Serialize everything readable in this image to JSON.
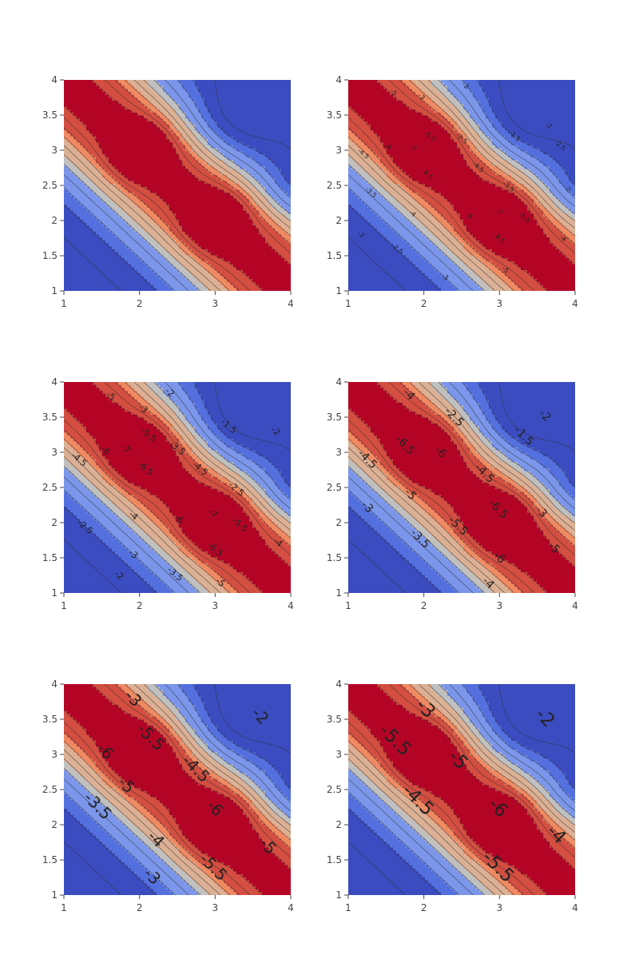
{
  "chart_data": [
    {
      "type": "contour",
      "x_range": [
        1,
        4
      ],
      "y_range": [
        1,
        4
      ],
      "x_ticks": [
        "1",
        "2",
        "3",
        "4"
      ],
      "y_ticks": [
        "1",
        "1.5",
        "2",
        "2.5",
        "3",
        "3.5",
        "4"
      ],
      "colorscale": [
        "#b40426",
        "#d44e41",
        "#f08a62",
        "#dcb094",
        "#c0c0c0",
        "#7b96ea",
        "#5470de",
        "#3b4cc0",
        "#1515a8"
      ],
      "labels": []
    },
    {
      "type": "contour",
      "x_range": [
        1,
        4
      ],
      "y_range": [
        1,
        4
      ],
      "x_ticks": [
        "1",
        "2",
        "3",
        "4"
      ],
      "y_ticks": [
        "1",
        "1.5",
        "2",
        "2.5",
        "3",
        "3.5",
        "4"
      ],
      "colorscale": [
        "#b40426",
        "#d44e41",
        "#f08a62",
        "#dcb094",
        "#c0c0c0",
        "#7b96ea",
        "#5470de",
        "#3b4cc0",
        "#1515a8"
      ],
      "labels": [
        {
          "text": "-5",
          "x": 1.6,
          "y": 3.82
        },
        {
          "text": "-3",
          "x": 1.97,
          "y": 3.76
        },
        {
          "text": "-2",
          "x": 2.55,
          "y": 3.92
        },
        {
          "text": "-5.5",
          "x": 2.08,
          "y": 3.2
        },
        {
          "text": "-6",
          "x": 1.53,
          "y": 3.05
        },
        {
          "text": "-7",
          "x": 1.86,
          "y": 3.04
        },
        {
          "text": "-6.5",
          "x": 2.05,
          "y": 2.66
        },
        {
          "text": "-2.5",
          "x": 2.5,
          "y": 3.17
        },
        {
          "text": "-1.5",
          "x": 3.2,
          "y": 3.2
        },
        {
          "text": "-4.5",
          "x": 2.72,
          "y": 2.76
        },
        {
          "text": "-2",
          "x": 3.65,
          "y": 3.35
        },
        {
          "text": "-2.5",
          "x": 3.8,
          "y": 3.07
        },
        {
          "text": "-3.5",
          "x": 3.12,
          "y": 2.48
        },
        {
          "text": "-4.5",
          "x": 1.2,
          "y": 2.95
        },
        {
          "text": "-3.5",
          "x": 1.3,
          "y": 2.4
        },
        {
          "text": "-4",
          "x": 1.85,
          "y": 2.1
        },
        {
          "text": "-7",
          "x": 3.0,
          "y": 2.13
        },
        {
          "text": "-6",
          "x": 2.6,
          "y": 2.07
        },
        {
          "text": "-5.5",
          "x": 3.33,
          "y": 2.04
        },
        {
          "text": "-2",
          "x": 1.17,
          "y": 1.8
        },
        {
          "text": "-2.5",
          "x": 1.65,
          "y": 1.6
        },
        {
          "text": "-6.5",
          "x": 3.0,
          "y": 1.75
        },
        {
          "text": "-4",
          "x": 3.84,
          "y": 1.75
        },
        {
          "text": "-3",
          "x": 2.28,
          "y": 1.2
        },
        {
          "text": "-5",
          "x": 3.08,
          "y": 1.3
        },
        {
          "text": "-2",
          "x": 3.9,
          "y": 2.45
        }
      ]
    },
    {
      "type": "contour",
      "x_range": [
        1,
        4
      ],
      "y_range": [
        1,
        4
      ],
      "x_ticks": [
        "1",
        "2",
        "3",
        "4"
      ],
      "y_ticks": [
        "1",
        "1.5",
        "2",
        "2.5",
        "3",
        "3.5",
        "4"
      ],
      "colorscale": [
        "#b40426",
        "#d44e41",
        "#f08a62",
        "#dcb094",
        "#c0c0c0",
        "#7b96ea",
        "#5470de",
        "#3b4cc0",
        "#1515a8"
      ],
      "labels": [
        {
          "text": "-5",
          "x": 1.62,
          "y": 3.8
        },
        {
          "text": "-3",
          "x": 2.05,
          "y": 3.62
        },
        {
          "text": "-2",
          "x": 2.4,
          "y": 3.85
        },
        {
          "text": "-5.5",
          "x": 2.12,
          "y": 3.25
        },
        {
          "text": "-6",
          "x": 1.55,
          "y": 3.03
        },
        {
          "text": "-7",
          "x": 1.82,
          "y": 3.05
        },
        {
          "text": "-6.5",
          "x": 2.08,
          "y": 2.77
        },
        {
          "text": "-3.5",
          "x": 2.5,
          "y": 3.06
        },
        {
          "text": "-1.5",
          "x": 3.18,
          "y": 3.37
        },
        {
          "text": "-2",
          "x": 3.8,
          "y": 3.3
        },
        {
          "text": "-4.5",
          "x": 2.8,
          "y": 2.77
        },
        {
          "text": "-2.5",
          "x": 3.28,
          "y": 2.48
        },
        {
          "text": "-4.5",
          "x": 1.2,
          "y": 2.9
        },
        {
          "text": "-4",
          "x": 1.92,
          "y": 2.1
        },
        {
          "text": "-6",
          "x": 2.52,
          "y": 2.05
        },
        {
          "text": "-7",
          "x": 2.97,
          "y": 2.13
        },
        {
          "text": "-5.5",
          "x": 3.33,
          "y": 1.97
        },
        {
          "text": "-2.5",
          "x": 1.28,
          "y": 1.94
        },
        {
          "text": "-6.5",
          "x": 3.0,
          "y": 1.62
        },
        {
          "text": "-3",
          "x": 1.92,
          "y": 1.55
        },
        {
          "text": "-4",
          "x": 3.83,
          "y": 1.72
        },
        {
          "text": "-2",
          "x": 1.73,
          "y": 1.25
        },
        {
          "text": "-3.5",
          "x": 2.47,
          "y": 1.27
        },
        {
          "text": "-5",
          "x": 3.07,
          "y": 1.15
        }
      ]
    },
    {
      "type": "contour",
      "x_range": [
        1,
        4
      ],
      "y_range": [
        1,
        4
      ],
      "x_ticks": [
        "1",
        "2",
        "3",
        "4"
      ],
      "y_ticks": [
        "1",
        "1.5",
        "2",
        "2.5",
        "3",
        "3.5",
        "4"
      ],
      "colorscale": [
        "#b40426",
        "#d44e41",
        "#f08a62",
        "#dcb094",
        "#c0c0c0",
        "#7b96ea",
        "#5470de",
        "#3b4cc0",
        "#1515a8"
      ],
      "labels": [
        {
          "text": "-4",
          "x": 1.8,
          "y": 3.82
        },
        {
          "text": "-2.5",
          "x": 2.4,
          "y": 3.5
        },
        {
          "text": "-2",
          "x": 3.6,
          "y": 3.52
        },
        {
          "text": "-6.5",
          "x": 1.75,
          "y": 3.1
        },
        {
          "text": "-6",
          "x": 2.22,
          "y": 3.0
        },
        {
          "text": "-1.5",
          "x": 3.32,
          "y": 3.23
        },
        {
          "text": "-4.5",
          "x": 1.25,
          "y": 2.9
        },
        {
          "text": "-4.5",
          "x": 2.8,
          "y": 2.7
        },
        {
          "text": "-5",
          "x": 1.82,
          "y": 2.4
        },
        {
          "text": "-3",
          "x": 1.25,
          "y": 2.22
        },
        {
          "text": "-3",
          "x": 3.55,
          "y": 2.15
        },
        {
          "text": "-6.5",
          "x": 2.98,
          "y": 2.19
        },
        {
          "text": "-5.5",
          "x": 2.45,
          "y": 1.95
        },
        {
          "text": "-3.5",
          "x": 1.95,
          "y": 1.77
        },
        {
          "text": "-5",
          "x": 3.72,
          "y": 1.64
        },
        {
          "text": "-6",
          "x": 3.0,
          "y": 1.5
        },
        {
          "text": "-4",
          "x": 2.85,
          "y": 1.14
        }
      ]
    },
    {
      "type": "contour",
      "x_range": [
        1,
        4
      ],
      "y_range": [
        1,
        4
      ],
      "x_ticks": [
        "1",
        "2",
        "3",
        "4"
      ],
      "y_ticks": [
        "1",
        "1.5",
        "2",
        "2.5",
        "3",
        "3.5",
        "4"
      ],
      "colorscale": [
        "#b40426",
        "#d44e41",
        "#f08a62",
        "#dcb094",
        "#c0c0c0",
        "#7b96ea",
        "#5470de",
        "#3b4cc0",
        "#1515a8"
      ],
      "labels": [
        {
          "text": "-3",
          "x": 1.92,
          "y": 3.8
        },
        {
          "text": "-2",
          "x": 3.6,
          "y": 3.55
        },
        {
          "text": "-5.5",
          "x": 2.15,
          "y": 3.25
        },
        {
          "text": "-6",
          "x": 1.55,
          "y": 3.05
        },
        {
          "text": "-4.5",
          "x": 2.75,
          "y": 2.8
        },
        {
          "text": "-5",
          "x": 1.83,
          "y": 2.57
        },
        {
          "text": "-3.5",
          "x": 1.45,
          "y": 2.27
        },
        {
          "text": "-6",
          "x": 3.0,
          "y": 2.24
        },
        {
          "text": "-4",
          "x": 2.22,
          "y": 1.8
        },
        {
          "text": "-5",
          "x": 3.7,
          "y": 1.7
        },
        {
          "text": "-5.5",
          "x": 2.98,
          "y": 1.4
        },
        {
          "text": "-3",
          "x": 2.17,
          "y": 1.27
        }
      ]
    },
    {
      "type": "contour",
      "x_range": [
        1,
        4
      ],
      "y_range": [
        1,
        4
      ],
      "x_ticks": [
        "1",
        "2",
        "3",
        "4"
      ],
      "y_ticks": [
        "1",
        "1.5",
        "2",
        "2.5",
        "3",
        "3.5",
        "4"
      ],
      "colorscale": [
        "#b40426",
        "#d44e41",
        "#f08a62",
        "#dcb094",
        "#c0c0c0",
        "#7b96ea",
        "#5470de",
        "#3b4cc0",
        "#1515a8"
      ],
      "labels": [
        {
          "text": "-3",
          "x": 2.02,
          "y": 3.65
        },
        {
          "text": "-2",
          "x": 3.6,
          "y": 3.52
        },
        {
          "text": "-5.5",
          "x": 1.62,
          "y": 3.2
        },
        {
          "text": "-5",
          "x": 2.45,
          "y": 2.92
        },
        {
          "text": "-4.5",
          "x": 1.92,
          "y": 2.35
        },
        {
          "text": "-6",
          "x": 2.98,
          "y": 2.24
        },
        {
          "text": "-4",
          "x": 3.75,
          "y": 1.86
        },
        {
          "text": "-5.5",
          "x": 2.98,
          "y": 1.4
        }
      ]
    }
  ]
}
